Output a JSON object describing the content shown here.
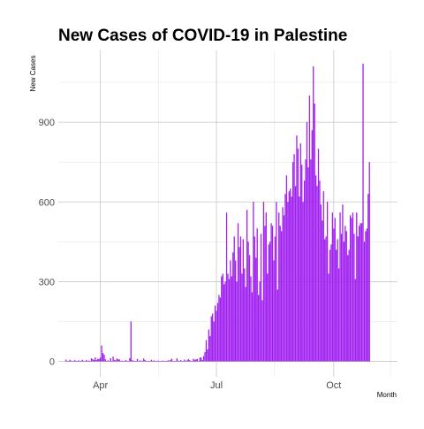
{
  "chart_data": {
    "type": "bar",
    "title": "New Cases of COVID-19 in Palestine",
    "xlabel": "Month",
    "ylabel": "New  Cases",
    "x_range": [
      "2020-02-28",
      "2020-11-20"
    ],
    "ylim": [
      -58,
      1170
    ],
    "y_ticks": [
      0,
      300,
      600,
      900
    ],
    "x_ticks": [
      {
        "date": "2020-04-01",
        "label": "Apr"
      },
      {
        "date": "2020-07-01",
        "label": "Jul"
      },
      {
        "date": "2020-10-01",
        "label": "Oct"
      }
    ],
    "grid": true,
    "bar_color": "#a020f0",
    "start_date": "2020-03-05",
    "daily_new_cases": [
      7,
      2,
      0,
      6,
      3,
      0,
      0,
      5,
      0,
      2,
      4,
      1,
      3,
      6,
      0,
      2,
      5,
      0,
      3,
      1,
      12,
      8,
      6,
      15,
      5,
      10,
      9,
      14,
      60,
      32,
      25,
      8,
      2,
      4,
      0,
      12,
      2,
      18,
      6,
      4,
      11,
      8,
      7,
      0,
      3,
      0,
      2,
      5,
      0,
      1,
      12,
      150,
      4,
      3,
      0,
      2,
      9,
      1,
      4,
      0,
      3,
      11,
      5,
      0,
      1,
      2,
      0,
      6,
      0,
      4,
      2,
      0,
      3,
      1,
      0,
      0,
      3,
      0,
      0,
      1,
      4,
      3,
      6,
      10,
      1,
      0,
      2,
      12,
      3,
      0,
      5,
      0,
      2,
      7,
      1,
      4,
      9,
      5,
      0,
      0,
      10,
      6,
      8,
      9,
      2,
      14,
      15,
      5,
      20,
      35,
      80,
      45,
      120,
      95,
      170,
      180,
      150,
      210,
      190,
      220,
      250,
      240,
      320,
      330,
      290,
      300,
      560,
      330,
      310,
      380,
      320,
      410,
      470,
      380,
      300,
      520,
      430,
      470,
      330,
      460,
      350,
      280,
      570,
      450,
      400,
      320,
      260,
      600,
      470,
      390,
      500,
      250,
      300,
      480,
      230,
      600,
      510,
      560,
      330,
      440,
      450,
      520,
      510,
      380,
      470,
      600,
      270,
      560,
      510,
      490,
      580,
      550,
      630,
      700,
      600,
      640,
      650,
      620,
      750,
      780,
      660,
      850,
      800,
      620,
      820,
      740,
      600,
      680,
      760,
      900,
      730,
      1000,
      760,
      870,
      1110,
      970,
      700,
      660,
      800,
      680,
      590,
      530,
      640,
      460,
      470,
      600,
      330,
      420,
      440,
      560,
      500,
      540,
      420,
      460,
      350,
      560,
      480,
      590,
      450,
      510,
      490,
      400,
      420,
      550,
      540,
      560,
      480,
      310,
      560,
      470,
      510,
      520,
      520,
      1120,
      450,
      490,
      500,
      630,
      750
    ]
  }
}
